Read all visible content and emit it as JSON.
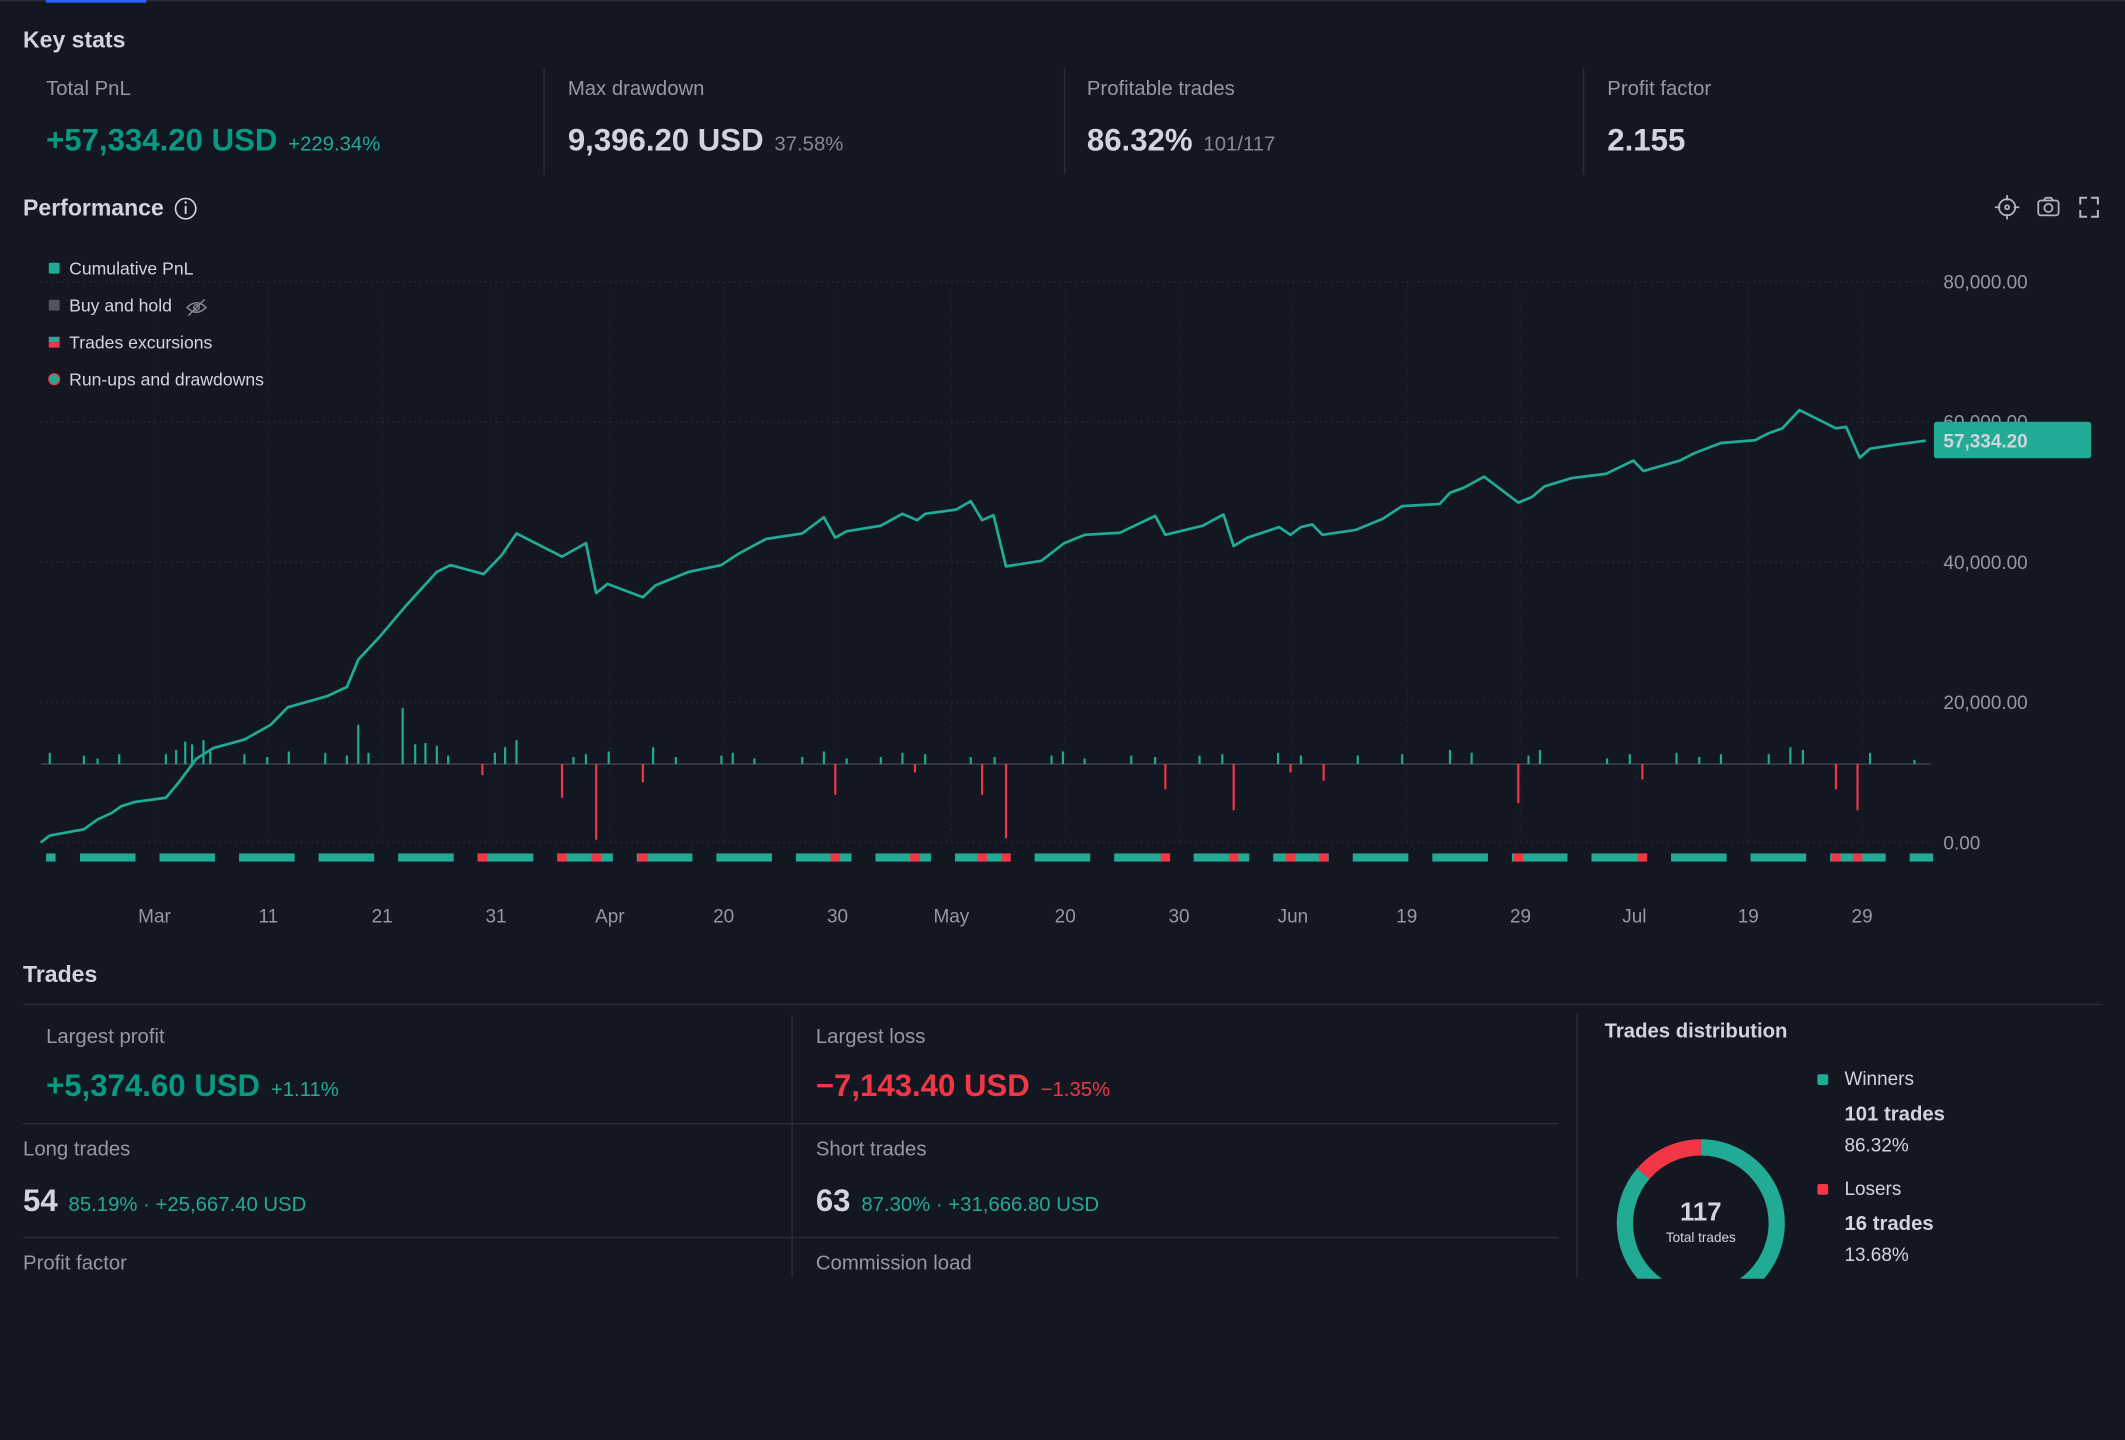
{
  "key_stats": {
    "title": "Key stats",
    "cards": [
      {
        "label": "Total PnL",
        "value": "+57,334.20 USD",
        "sub": "+229.34%"
      },
      {
        "label": "Max drawdown",
        "value": "9,396.20 USD",
        "sub": "37.58%"
      },
      {
        "label": "Profitable trades",
        "value": "86.32%",
        "sub": "101/117"
      },
      {
        "label": "Profit factor",
        "value": "2.155"
      }
    ]
  },
  "performance": {
    "title": "Performance"
  },
  "trades": {
    "title": "Trades",
    "cards": [
      {
        "label": "Largest profit",
        "value": "+5,374.60 USD",
        "sub": "+1.11%"
      },
      {
        "label": "Largest loss",
        "value": "−7,143.40 USD",
        "sub": "−1.35%"
      },
      {
        "label": "Long trades",
        "value": "54",
        "sub": "85.19% · +25,667.40 USD"
      },
      {
        "label": "Short trades",
        "value": "63",
        "sub": "87.30% · +31,666.80 USD"
      },
      {
        "label": "Profit factor"
      },
      {
        "label": "Commission load"
      }
    ]
  },
  "chart_data": [
    {
      "type": "line",
      "xlim": [
        0,
        166
      ],
      "xticks": [
        {
          "value": 10,
          "label": "Mar"
        },
        {
          "value": 20,
          "label": "11"
        },
        {
          "value": 30,
          "label": "21"
        },
        {
          "value": 40,
          "label": "31"
        },
        {
          "value": 50,
          "label": "Apr"
        },
        {
          "value": 60,
          "label": "20"
        },
        {
          "value": 70,
          "label": "30"
        },
        {
          "value": 80,
          "label": "May"
        },
        {
          "value": 90,
          "label": "20"
        },
        {
          "value": 100,
          "label": "30"
        },
        {
          "value": 110,
          "label": "Jun"
        },
        {
          "value": 120,
          "label": "19"
        },
        {
          "value": 130,
          "label": "29"
        },
        {
          "value": 140,
          "label": "Jul"
        },
        {
          "value": 150,
          "label": "19"
        },
        {
          "value": 160,
          "label": "29"
        }
      ],
      "ylim": [
        0,
        80000
      ],
      "yticks": [
        {
          "value": 0,
          "label": "0.00"
        },
        {
          "value": 20000,
          "label": "20,000.00"
        },
        {
          "value": 40000,
          "label": "40,000.00"
        },
        {
          "value": 60000,
          "label": "60,000.00"
        },
        {
          "value": 80000,
          "label": "80,000.00"
        }
      ],
      "grid": true,
      "legend": "top-left",
      "series": [
        {
          "name": "Cumulative PnL",
          "color": "#22ab94",
          "x": [
            0,
            0.8,
            3.8,
            5,
            6.2,
            7.1,
            8.3,
            11,
            12.1,
            13.7,
            15.2,
            17.9,
            20.2,
            21.7,
            25.2,
            26.9,
            27.9,
            29.8,
            32.1,
            34.8,
            36,
            38.9,
            40.5,
            41.8,
            45.8,
            47.9,
            48.8,
            49.8,
            52.9,
            54,
            56.9,
            59.8,
            61.3,
            63.7,
            66.9,
            68.8,
            69.8,
            70.8,
            73.8,
            75.7,
            77,
            77.7,
            80.4,
            81.7,
            82.7,
            83.7,
            84.8,
            87.9,
            89.9,
            91.7,
            94.8,
            97.9,
            98.8,
            102.1,
            103.9,
            104.8,
            106,
            108.8,
            109.8,
            110.7,
            111.7,
            112.6,
            115.5,
            117.9,
            119.6,
            122.9,
            123.8,
            125,
            126.8,
            129.8,
            131,
            132.1,
            134.5,
            137.5,
            139.9,
            140.8,
            144,
            145.2,
            147.6,
            150.6,
            151.8,
            153,
            154.5,
            157.7,
            158.6,
            159.8,
            160.7,
            163.1,
            165.6
          ],
          "values": [
            0,
            1000,
            1900,
            3300,
            4200,
            5200,
            5800,
            6400,
            8500,
            12000,
            13500,
            14700,
            16800,
            19300,
            20900,
            22200,
            26100,
            29400,
            33800,
            38600,
            39600,
            38300,
            41000,
            44100,
            40800,
            42700,
            35600,
            36900,
            35000,
            36700,
            38600,
            39600,
            41200,
            43300,
            44100,
            46400,
            43500,
            44400,
            45200,
            46900,
            46000,
            46900,
            47500,
            48700,
            46000,
            46700,
            39400,
            40200,
            42700,
            43900,
            44200,
            46600,
            43900,
            45200,
            46800,
            42300,
            43500,
            45000,
            43900,
            45000,
            45400,
            43900,
            44600,
            46200,
            48000,
            48300,
            49900,
            50600,
            52200,
            48500,
            49300,
            50800,
            52000,
            52600,
            54500,
            53000,
            54500,
            55500,
            57000,
            57400,
            58400,
            59100,
            61700,
            59100,
            59300,
            54900,
            56200,
            56800,
            57334.2
          ],
          "value_labels": [
            null,
            null,
            null,
            null,
            null,
            null,
            null,
            null,
            null,
            null,
            null,
            null,
            null,
            null,
            null,
            null,
            null,
            null,
            null,
            null,
            null,
            null,
            null,
            null,
            null,
            null,
            null,
            null,
            null,
            null,
            null,
            null,
            null,
            null,
            null,
            null,
            null,
            null,
            null,
            null,
            null,
            null,
            null,
            null,
            null,
            null,
            null,
            null,
            null,
            null,
            null,
            null,
            null,
            null,
            null,
            null,
            null,
            null,
            null,
            null,
            null,
            null,
            null,
            null,
            null,
            null,
            null,
            null,
            null,
            null,
            null,
            null,
            null,
            null,
            null,
            null,
            null,
            null,
            null,
            null,
            null,
            null,
            null,
            null,
            null,
            null,
            null,
            null,
            "57,334.20"
          ]
        },
        {
          "name": "Buy and hold",
          "color": "#50535e",
          "hidden": true
        },
        {
          "name": "Trades excursions",
          "color": "#22ab94",
          "negative_color": "#f23645",
          "x": [
            0.8,
            3.8,
            5,
            6.9,
            11,
            11.9,
            12.7,
            13.3,
            14.3,
            14.9,
            17.9,
            19.9,
            21.8,
            25,
            26.9,
            27.9,
            28.8,
            31.8,
            32.9,
            33.8,
            34.8,
            35.8,
            38.8,
            39.9,
            40.8,
            41.8,
            45.8,
            46.8,
            47.9,
            48.8,
            49.9,
            52.9,
            53.8,
            55.8,
            59.8,
            60.8,
            62.7,
            66.9,
            68.8,
            69.8,
            70.8,
            73.8,
            75.7,
            76.8,
            77.7,
            81.7,
            82.7,
            83.8,
            84.8,
            88.8,
            89.8,
            91.7,
            95.8,
            97.9,
            98.8,
            101.8,
            103.8,
            104.8,
            108.7,
            109.8,
            110.7,
            112.7,
            115.7,
            119.6,
            123.8,
            125.7,
            129.8,
            130.7,
            131.7,
            137.6,
            139.6,
            140.7,
            143.7,
            145.7,
            147.6,
            151.8,
            153.7,
            154.8,
            157.7,
            159.6,
            160.7,
            164.6
          ],
          "values": [
            1600,
            1200,
            800,
            1400,
            1400,
            2000,
            3200,
            2800,
            3400,
            1800,
            1400,
            1000,
            1800,
            1600,
            1200,
            5600,
            1600,
            8000,
            2800,
            3000,
            2600,
            1200,
            -1600,
            1600,
            2400,
            3400,
            -4800,
            1000,
            1400,
            -10800,
            1800,
            -2600,
            2400,
            1000,
            1200,
            1600,
            800,
            1000,
            1800,
            -4400,
            800,
            1000,
            1600,
            -1200,
            1400,
            1000,
            -4400,
            1000,
            -10600,
            1200,
            1800,
            800,
            1200,
            1000,
            -3600,
            1200,
            1400,
            -6600,
            1600,
            -1200,
            1200,
            -2400,
            1200,
            1400,
            2000,
            1600,
            -5600,
            1200,
            2000,
            800,
            1400,
            -2200,
            1600,
            1000,
            1400,
            1400,
            2400,
            2000,
            -3600,
            -6600,
            1600,
            600
          ]
        },
        {
          "name": "Run-ups and drawdowns",
          "color": "#22ab94"
        }
      ]
    },
    {
      "type": "donut",
      "title": "Trades distribution",
      "categories": [
        "Winners",
        "Losers"
      ],
      "colors": [
        "#22ab94",
        "#f23645"
      ],
      "values": [
        101,
        16
      ],
      "value_labels": [
        "101 trades",
        "16 trades"
      ],
      "shares": [
        86.32,
        13.68
      ],
      "share_labels": [
        "86.32%",
        "13.68%"
      ],
      "total": 117,
      "total_label": "Total trades"
    }
  ]
}
